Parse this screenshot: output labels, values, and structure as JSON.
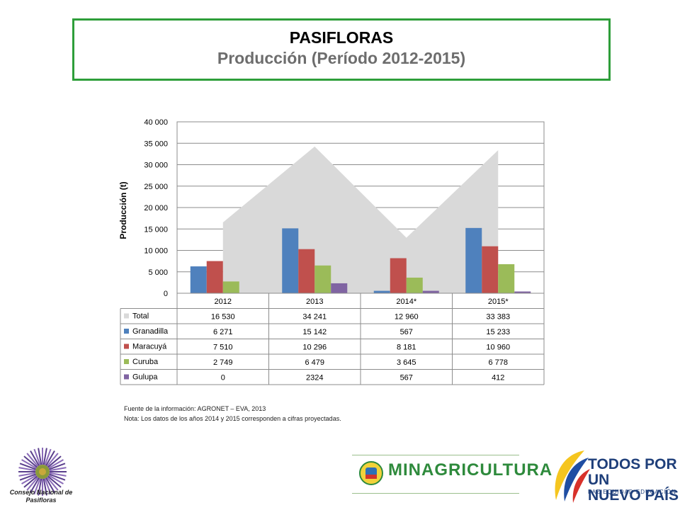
{
  "header": {
    "title": "PASIFLORAS",
    "subtitle": "Producción (Período 2012-2015)"
  },
  "chart_data": {
    "type": "bar",
    "title": "",
    "ylabel": "Producción (t)",
    "ylim": [
      0,
      40000
    ],
    "yticks": [
      "40 000",
      "35 000",
      "30 000",
      "25 000",
      "20 000",
      "15 000",
      "10 000",
      "5 000",
      "0"
    ],
    "categories": [
      "2012",
      "2013",
      "2014*",
      "2015*"
    ],
    "area_series": {
      "name": "Total",
      "values": [
        16530,
        34241,
        12960,
        33383
      ],
      "color": "#d9d9d9"
    },
    "series": [
      {
        "name": "Granadilla",
        "values": [
          6271,
          15142,
          567,
          15233
        ],
        "color": "#4f81bd"
      },
      {
        "name": "Maracuyá",
        "values": [
          7510,
          10296,
          8181,
          10960
        ],
        "color": "#c0504d"
      },
      {
        "name": "Curuba",
        "values": [
          2749,
          6479,
          3645,
          6778
        ],
        "color": "#9bbb59"
      },
      {
        "name": "Gulupa",
        "values": [
          0,
          2324,
          567,
          412
        ],
        "color": "#8064a2"
      }
    ],
    "table": [
      {
        "name": "Total",
        "cells": [
          "16 530",
          "34 241",
          "12 960",
          "33 383"
        ],
        "color": "#d9d9d9"
      },
      {
        "name": "Granadilla",
        "cells": [
          "6 271",
          "15 142",
          "567",
          "15 233"
        ],
        "color": "#4f81bd"
      },
      {
        "name": "Maracuyá",
        "cells": [
          "7 510",
          "10 296",
          "8 181",
          "10 960"
        ],
        "color": "#c0504d"
      },
      {
        "name": "Curuba",
        "cells": [
          "2 749",
          "6 479",
          "3 645",
          "6 778"
        ],
        "color": "#9bbb59"
      },
      {
        "name": "Gulupa",
        "cells": [
          "0",
          "2324",
          "567",
          "412"
        ],
        "color": "#8064a2"
      }
    ],
    "grid": true,
    "legend": "table-bottom"
  },
  "notes": {
    "source": "Fuente de la información: AGRONET – EVA, 2013",
    "note": "Nota: Los datos de los años 2014 y 2015 corresponden  a cifras proyectadas."
  },
  "logos": {
    "cnp": [
      "Consejo Nacional de",
      "Pasifloras"
    ],
    "minagricultura": "MINAGRICULTURA",
    "todos": [
      "TODOS POR UN",
      "NUEVO PAÍS"
    ],
    "paz": "PAZ   EQUIDAD   EDUCACIÓN"
  }
}
